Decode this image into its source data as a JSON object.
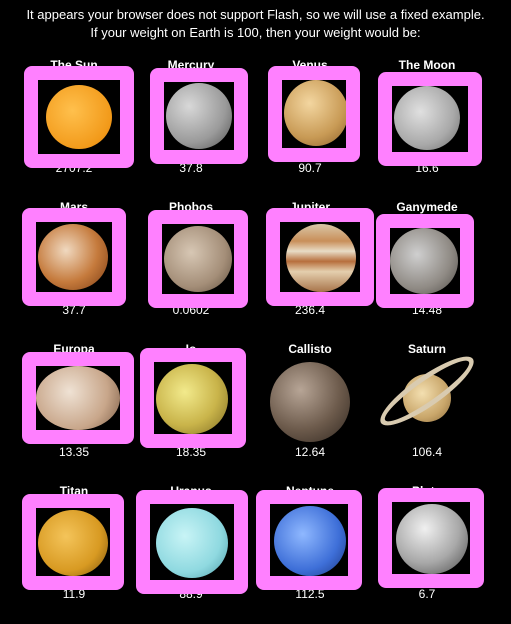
{
  "header": {
    "line1": "It appears your browser does not support Flash, so we will use a fixed example.",
    "line2": "If your weight on Earth is 100, then your weight would be:"
  },
  "planets": [
    {
      "name": "The Sun",
      "weight": "2707.2"
    },
    {
      "name": "Mercury",
      "weight": "37.8"
    },
    {
      "name": "Venus",
      "weight": "90.7"
    },
    {
      "name": "The Moon",
      "weight": "16.6"
    },
    {
      "name": "Mars",
      "weight": "37.7"
    },
    {
      "name": "Phobos",
      "weight": "0.0602"
    },
    {
      "name": "Jupiter",
      "weight": "236.4"
    },
    {
      "name": "Ganymede",
      "weight": "14.48"
    },
    {
      "name": "Europa",
      "weight": "13.35"
    },
    {
      "name": "Io",
      "weight": "18.35"
    },
    {
      "name": "Callisto",
      "weight": "12.64"
    },
    {
      "name": "Saturn",
      "weight": "106.4"
    },
    {
      "name": "Titan",
      "weight": "11.9"
    },
    {
      "name": "Uranus",
      "weight": "88.9"
    },
    {
      "name": "Neptune",
      "weight": "112.5"
    },
    {
      "name": "Pluto",
      "weight": "6.7"
    }
  ],
  "colors": {
    "highlight": "#ff80ff",
    "background": "#000000"
  }
}
